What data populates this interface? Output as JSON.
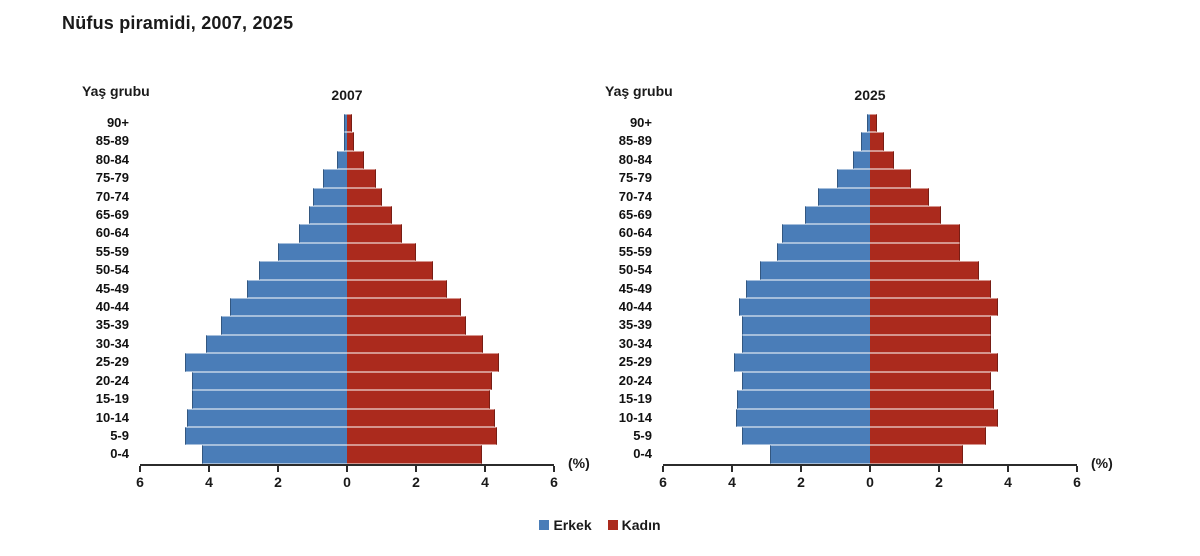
{
  "title": "Nüfus piramidi, 2007, 2025",
  "age_group_header": "Yaş grubu",
  "legend": {
    "male_label": "Erkek",
    "female_label": "Kadın"
  },
  "colors": {
    "male": "#4a7db8",
    "female": "#ab2a1d"
  },
  "axis": {
    "tick_labels": [
      "6",
      "4",
      "2",
      "0",
      "2",
      "4",
      "6"
    ],
    "max": 6,
    "unit_label": "(%)"
  },
  "chart_data": [
    {
      "type": "bar",
      "title": "2007",
      "subtype": "population-pyramid",
      "unit": "% of total population",
      "categories": [
        "90+",
        "85-89",
        "80-84",
        "75-79",
        "70-74",
        "65-69",
        "60-64",
        "55-59",
        "50-54",
        "45-49",
        "40-44",
        "35-39",
        "30-34",
        "25-29",
        "20-24",
        "15-19",
        "10-14",
        "5-9",
        "0-4"
      ],
      "series": [
        {
          "name": "Erkek",
          "side": "left",
          "values": [
            0.1,
            0.1,
            0.3,
            0.7,
            1.0,
            1.1,
            1.4,
            2.0,
            2.55,
            2.9,
            3.4,
            3.65,
            4.1,
            4.7,
            4.5,
            4.5,
            4.65,
            4.7,
            4.2
          ]
        },
        {
          "name": "Kadın",
          "side": "right",
          "values": [
            0.15,
            0.2,
            0.5,
            0.85,
            1.0,
            1.3,
            1.6,
            2.0,
            2.5,
            2.9,
            3.3,
            3.45,
            3.95,
            4.4,
            4.2,
            4.15,
            4.3,
            4.35,
            3.9
          ]
        }
      ],
      "xlim": [
        -6,
        6
      ],
      "xlabel": "(%)",
      "grid": false,
      "legend_position": "bottom-center"
    },
    {
      "type": "bar",
      "title": "2025",
      "subtype": "population-pyramid",
      "unit": "% of total population",
      "categories": [
        "90+",
        "85-89",
        "80-84",
        "75-79",
        "70-74",
        "65-69",
        "60-64",
        "55-59",
        "50-54",
        "45-49",
        "40-44",
        "35-39",
        "30-34",
        "25-29",
        "20-24",
        "15-19",
        "10-14",
        "5-9",
        "0-4"
      ],
      "series": [
        {
          "name": "Erkek",
          "side": "left",
          "values": [
            0.1,
            0.25,
            0.5,
            0.95,
            1.5,
            1.9,
            2.55,
            2.7,
            3.2,
            3.6,
            3.8,
            3.7,
            3.7,
            3.95,
            3.7,
            3.85,
            3.9,
            3.7,
            2.9
          ]
        },
        {
          "name": "Kadın",
          "side": "right",
          "values": [
            0.2,
            0.4,
            0.7,
            1.2,
            1.7,
            2.05,
            2.6,
            2.6,
            3.15,
            3.5,
            3.7,
            3.5,
            3.5,
            3.7,
            3.5,
            3.6,
            3.7,
            3.35,
            2.7
          ]
        }
      ],
      "xlim": [
        -6,
        6
      ],
      "xlabel": "(%)",
      "grid": false,
      "legend_position": "bottom-center"
    }
  ]
}
